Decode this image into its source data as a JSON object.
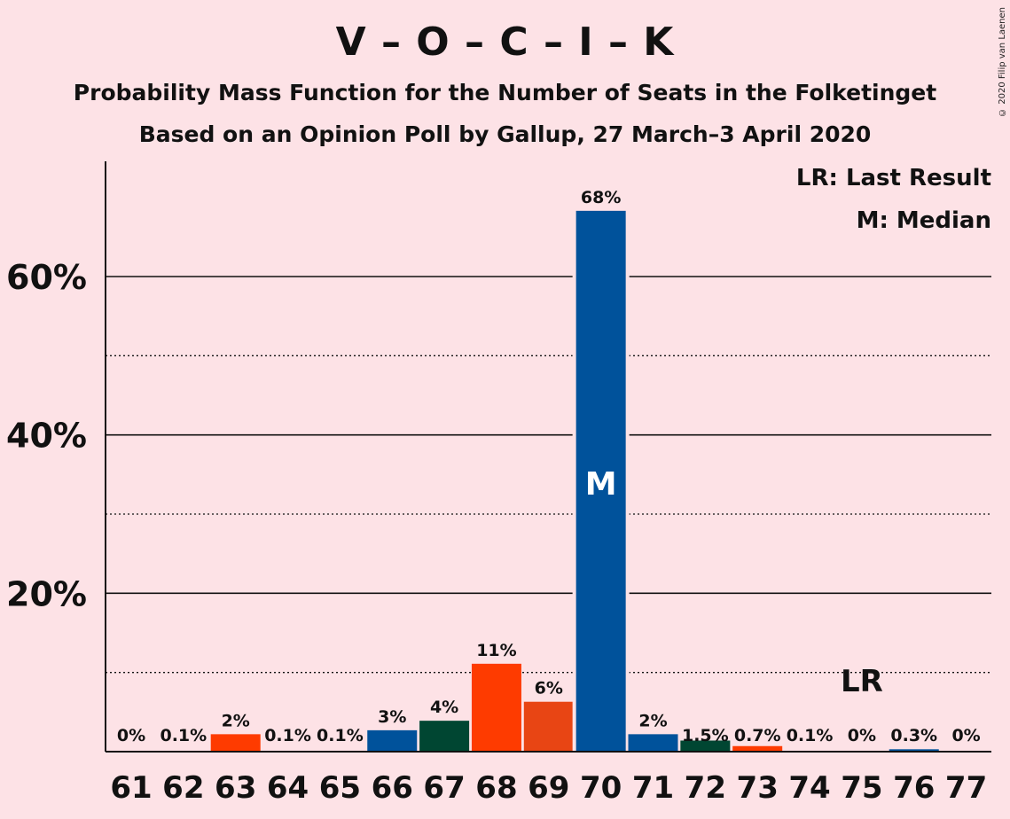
{
  "title": "V – O – C – I – K",
  "subtitle1": "Probability Mass Function for the Number of Seats in the Folketinget",
  "subtitle2": "Based on an Opinion Poll by Gallup, 27 March–3 April 2020",
  "copyright": "© 2020 Filip van Laenen",
  "legend": {
    "last_result": "LR: Last Result",
    "median": "M: Median"
  },
  "chart_data": {
    "type": "bar",
    "categories": [
      "61",
      "62",
      "63",
      "64",
      "65",
      "66",
      "67",
      "68",
      "69",
      "70",
      "71",
      "72",
      "73",
      "74",
      "75",
      "76",
      "77"
    ],
    "values": [
      0,
      0.1,
      2,
      0.1,
      0.1,
      3,
      4,
      11,
      6,
      68,
      2,
      1.5,
      0.7,
      0.1,
      0,
      0.3,
      0
    ],
    "bar_heights": [
      0,
      0.1,
      2.2,
      0.1,
      0.1,
      2.7,
      3.9,
      11.1,
      6.3,
      68.3,
      2.2,
      1.4,
      0.7,
      0.1,
      0,
      0.3,
      0
    ],
    "data_labels": [
      "0%",
      "0.1%",
      "2%",
      "0.1%",
      "0.1%",
      "3%",
      "4%",
      "11%",
      "6%",
      "68%",
      "2%",
      "1.5%",
      "0.7%",
      "0.1%",
      "0%",
      "0.3%",
      "0%"
    ],
    "colors": [
      "#00529b",
      "#00529b",
      "#fe3b00",
      "#00529b",
      "#00529b",
      "#00529b",
      "#004632",
      "#fe3b00",
      "#e84514",
      "#00529b",
      "#00529b",
      "#004632",
      "#fe3b00",
      "#00529b",
      "#00529b",
      "#00529b",
      "#00529b"
    ],
    "ylim": [
      0,
      74
    ],
    "yticks_major": [
      20,
      40,
      60
    ],
    "yticks_minor": [
      10,
      30,
      50
    ],
    "ytick_labels": [
      "20%",
      "40%",
      "60%"
    ],
    "median_seat": "70",
    "median_label": "M",
    "last_result_seat": "75",
    "last_result_label": "LR"
  }
}
